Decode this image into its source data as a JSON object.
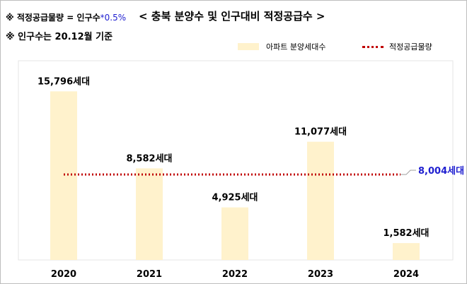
{
  "notes": {
    "formula_prefix": "※ 적정공급물량 = 인구수",
    "formula_suffix": "*0.5%",
    "population_basis": "※ 인구수는 20.12월 기준"
  },
  "colors": {
    "bar": "#fff2cc",
    "line": "#c00000",
    "line_label": "#1f1fd0"
  },
  "chart_data": {
    "type": "bar",
    "title": "< 충북  분양수 및 인구대비 적정공급수 >",
    "categories": [
      "2020",
      "2021",
      "2022",
      "2023",
      "2024"
    ],
    "series": [
      {
        "name": "아파트 분양세대수",
        "type": "bar",
        "values": [
          15796,
          8582,
          4925,
          11077,
          1582
        ]
      },
      {
        "name": "적정공급물량",
        "type": "line",
        "values": [
          8004,
          8004,
          8004,
          8004,
          8004
        ]
      }
    ],
    "data_labels": [
      "15,796세대",
      "8,582세대",
      "4,925세대",
      "11,077세대",
      "1,582세대"
    ],
    "line_label": "8,004세대",
    "ylim": [
      0,
      18000
    ],
    "grid": false,
    "legend_position": "top-right"
  }
}
